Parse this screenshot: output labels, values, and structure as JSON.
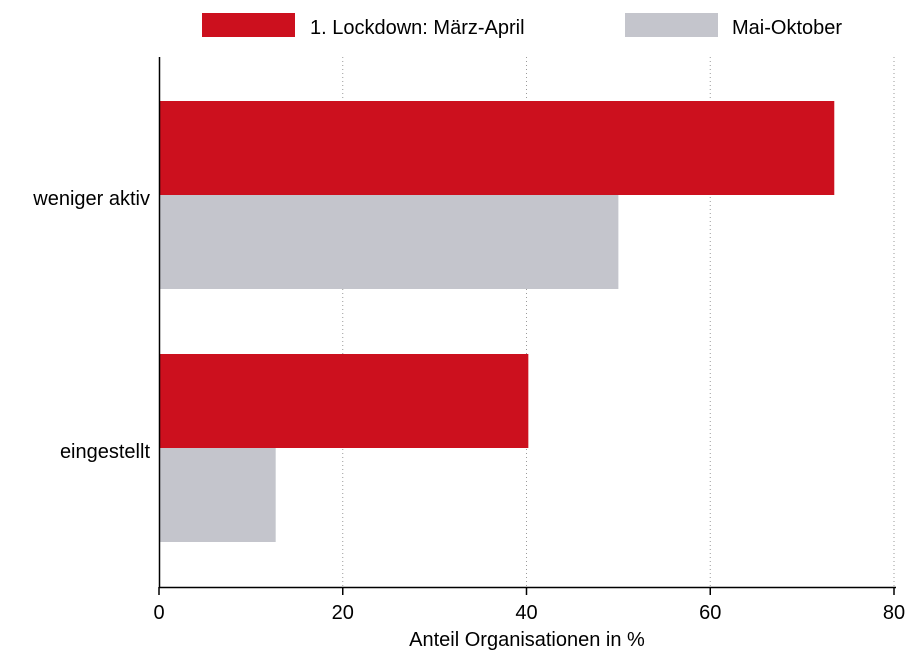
{
  "chart_data": {
    "type": "bar",
    "orientation": "horizontal",
    "categories": [
      "weniger aktiv",
      "eingestellt"
    ],
    "series": [
      {
        "name": "1. Lockdown: März-April",
        "values": [
          73.5,
          40.2
        ],
        "color": "#cc101e"
      },
      {
        "name": "Mai-Oktober",
        "values": [
          50.0,
          12.7
        ],
        "color": "#c4c5cc"
      }
    ],
    "xlabel": "Anteil Organisationen in %",
    "ylabel": "",
    "xlim": [
      0,
      80
    ],
    "xticks": [
      "0",
      "20",
      "40",
      "60",
      "80"
    ],
    "grid": "vertical dotted",
    "legend_position": "top"
  }
}
